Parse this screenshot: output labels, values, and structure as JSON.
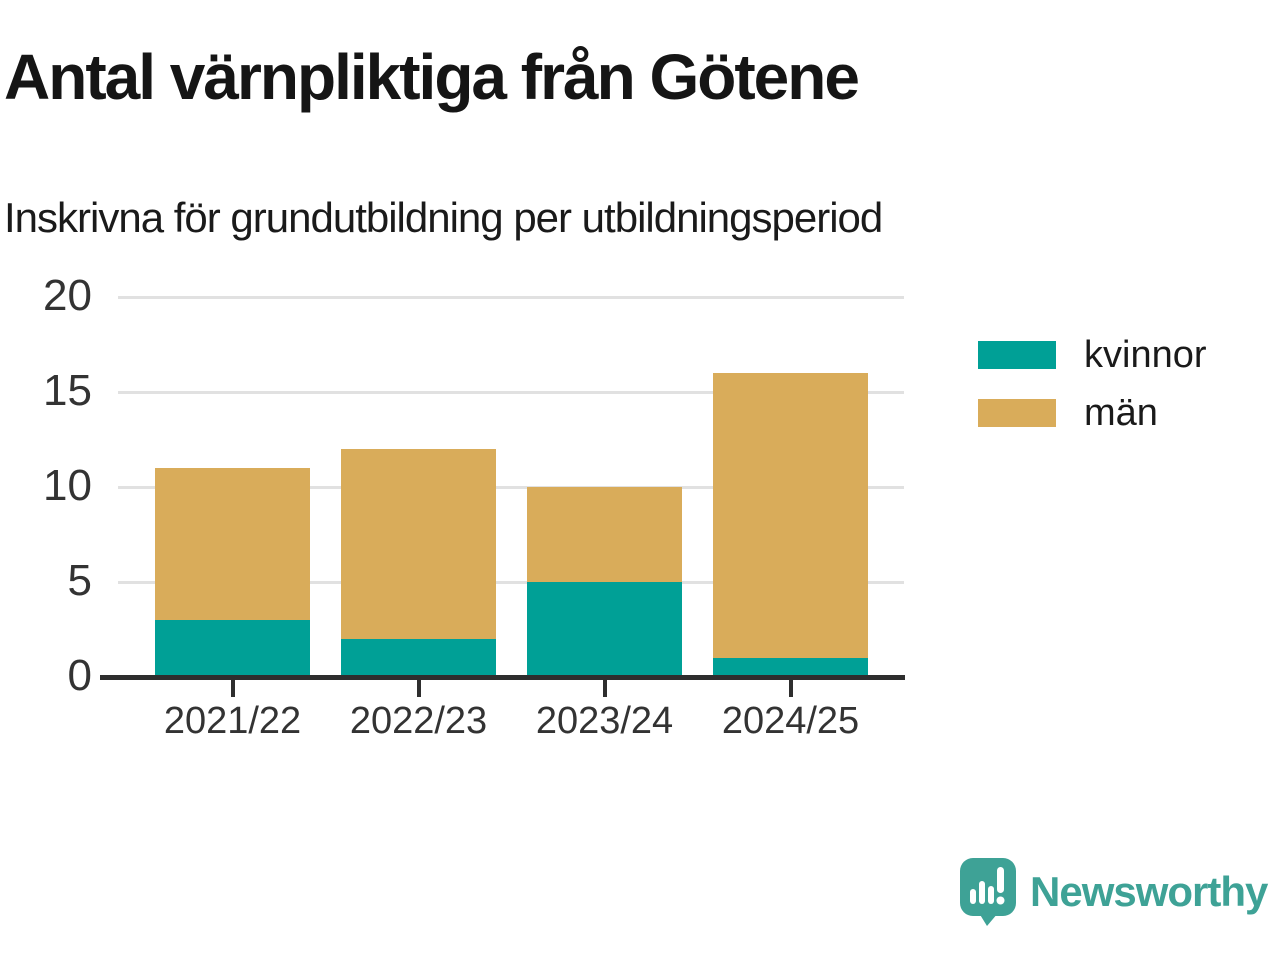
{
  "chart_data": {
    "type": "bar",
    "stacked": true,
    "title": "Antal värnpliktiga från Götene",
    "subtitle": "Inskrivna för grundutbildning per utbildningsperiod",
    "categories": [
      "2021/22",
      "2022/23",
      "2023/24",
      "2024/25"
    ],
    "series": [
      {
        "name": "kvinnor",
        "color": "#00a096",
        "values": [
          3,
          2,
          5,
          1
        ]
      },
      {
        "name": "män",
        "color": "#d9ac5a",
        "values": [
          8,
          10,
          5,
          15
        ]
      }
    ],
    "totals": [
      11,
      12,
      10,
      16
    ],
    "ylim": [
      0,
      20
    ],
    "yticks": [
      0,
      5,
      10,
      15,
      20
    ],
    "grid": true,
    "legend_position": "right"
  },
  "footer": {
    "brand": "Newsworthy",
    "brand_color": "#3ea296"
  }
}
